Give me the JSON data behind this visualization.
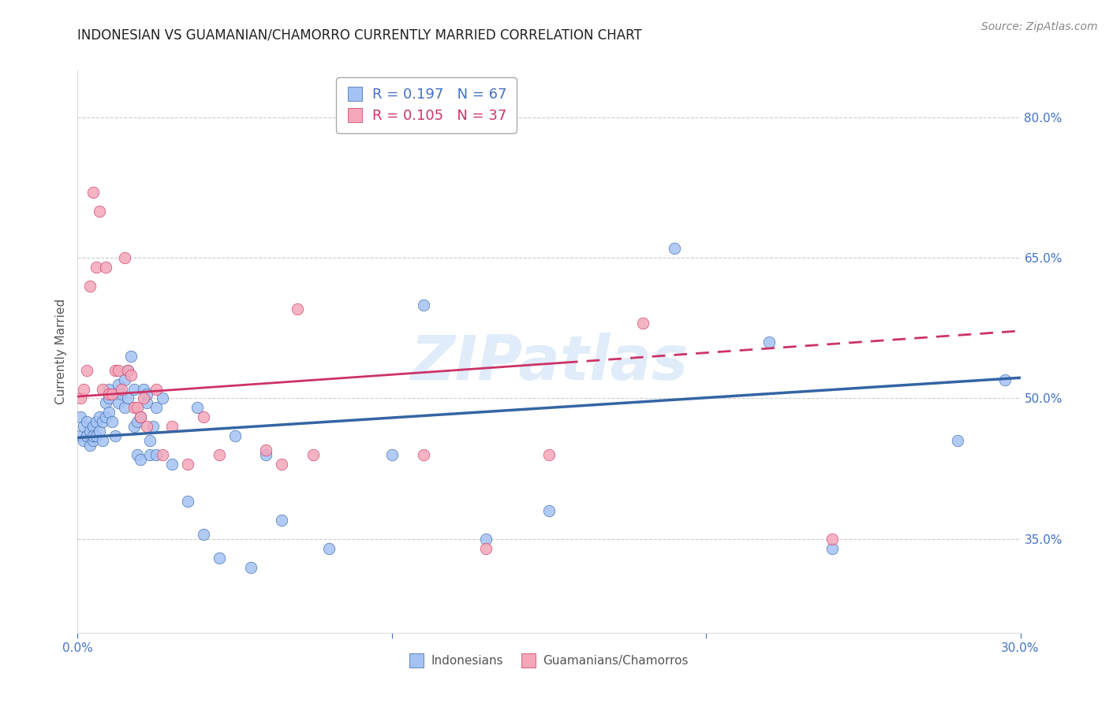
{
  "title": "INDONESIAN VS GUAMANIAN/CHAMORRO CURRENTLY MARRIED CORRELATION CHART",
  "source": "Source: ZipAtlas.com",
  "ylabel": "Currently Married",
  "r_indonesian": 0.197,
  "n_indonesian": 67,
  "r_guamanian": 0.105,
  "n_guamanian": 37,
  "blue_color": "#a4c2f4",
  "pink_color": "#f4a7b9",
  "blue_line_color": "#3465a4",
  "pink_line_color": "#cc3366",
  "x_min": 0.0,
  "x_max": 0.3,
  "y_min": 0.25,
  "y_max": 0.85,
  "right_yticks": [
    0.35,
    0.5,
    0.65,
    0.8
  ],
  "right_ytick_labels": [
    "35.0%",
    "50.0%",
    "65.0%",
    "80.0%"
  ],
  "blue_x": [
    0.001,
    0.001,
    0.002,
    0.002,
    0.003,
    0.003,
    0.004,
    0.004,
    0.005,
    0.005,
    0.005,
    0.006,
    0.006,
    0.007,
    0.007,
    0.008,
    0.008,
    0.009,
    0.009,
    0.01,
    0.01,
    0.01,
    0.011,
    0.012,
    0.012,
    0.013,
    0.013,
    0.014,
    0.015,
    0.015,
    0.016,
    0.016,
    0.017,
    0.018,
    0.018,
    0.019,
    0.019,
    0.02,
    0.02,
    0.021,
    0.022,
    0.022,
    0.023,
    0.023,
    0.024,
    0.025,
    0.025,
    0.027,
    0.03,
    0.035,
    0.038,
    0.04,
    0.045,
    0.05,
    0.055,
    0.06,
    0.065,
    0.08,
    0.1,
    0.11,
    0.13,
    0.15,
    0.19,
    0.22,
    0.24,
    0.28,
    0.295
  ],
  "blue_y": [
    0.46,
    0.48,
    0.455,
    0.47,
    0.475,
    0.46,
    0.45,
    0.465,
    0.455,
    0.47,
    0.46,
    0.46,
    0.475,
    0.465,
    0.48,
    0.455,
    0.475,
    0.48,
    0.495,
    0.5,
    0.51,
    0.485,
    0.475,
    0.505,
    0.46,
    0.495,
    0.515,
    0.505,
    0.52,
    0.49,
    0.53,
    0.5,
    0.545,
    0.51,
    0.47,
    0.475,
    0.44,
    0.48,
    0.435,
    0.51,
    0.495,
    0.505,
    0.44,
    0.455,
    0.47,
    0.44,
    0.49,
    0.5,
    0.43,
    0.39,
    0.49,
    0.355,
    0.33,
    0.46,
    0.32,
    0.44,
    0.37,
    0.34,
    0.44,
    0.6,
    0.35,
    0.38,
    0.66,
    0.56,
    0.34,
    0.455,
    0.52
  ],
  "pink_x": [
    0.001,
    0.002,
    0.003,
    0.004,
    0.005,
    0.006,
    0.007,
    0.008,
    0.009,
    0.01,
    0.011,
    0.012,
    0.013,
    0.014,
    0.015,
    0.016,
    0.017,
    0.018,
    0.019,
    0.02,
    0.021,
    0.022,
    0.025,
    0.027,
    0.03,
    0.035,
    0.04,
    0.045,
    0.06,
    0.065,
    0.07,
    0.075,
    0.11,
    0.13,
    0.15,
    0.18,
    0.24
  ],
  "pink_y": [
    0.5,
    0.51,
    0.53,
    0.62,
    0.72,
    0.64,
    0.7,
    0.51,
    0.64,
    0.505,
    0.505,
    0.53,
    0.53,
    0.51,
    0.65,
    0.53,
    0.525,
    0.49,
    0.49,
    0.48,
    0.5,
    0.47,
    0.51,
    0.44,
    0.47,
    0.43,
    0.48,
    0.44,
    0.445,
    0.43,
    0.595,
    0.44,
    0.44,
    0.34,
    0.44,
    0.58,
    0.35
  ],
  "blue_trend_x0": 0.0,
  "blue_trend_y0": 0.458,
  "blue_trend_x1": 0.3,
  "blue_trend_y1": 0.522,
  "pink_trend_x0": 0.0,
  "pink_trend_y0": 0.502,
  "pink_trend_x1": 0.3,
  "pink_trend_y1": 0.572,
  "watermark": "ZIPatlas"
}
